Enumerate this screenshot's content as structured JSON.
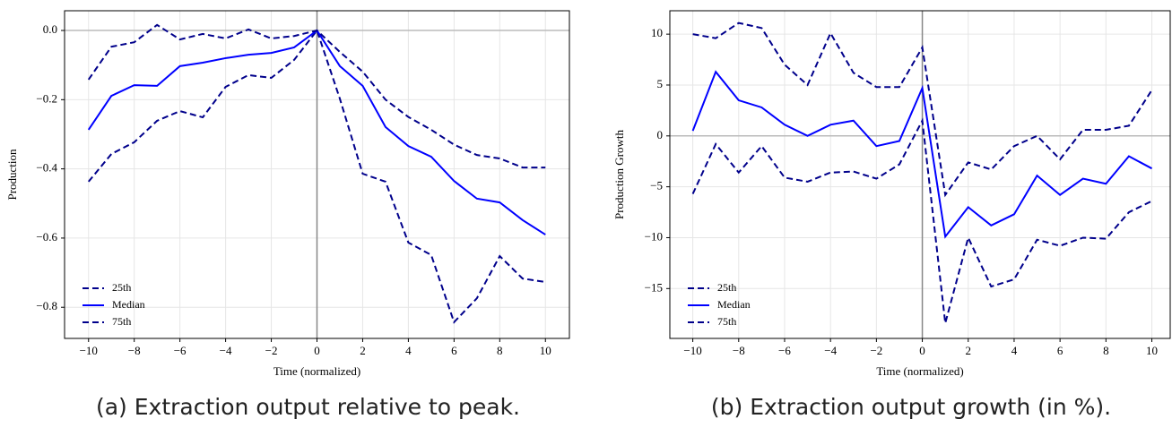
{
  "chart_data": [
    {
      "type": "line",
      "xlabel": "Time (normalized)",
      "ylabel": "Production",
      "caption": "(a) Extraction output relative to peak.",
      "x": [
        -10,
        -9,
        -8,
        -7,
        -6,
        -5,
        -4,
        -3,
        -2,
        -1,
        0,
        1,
        2,
        3,
        4,
        5,
        6,
        7,
        8,
        9,
        10
      ],
      "series": [
        {
          "name": "25th",
          "color": "#00008b",
          "style": "dashed",
          "values": [
            -0.437,
            -0.357,
            -0.323,
            -0.261,
            -0.233,
            -0.251,
            -0.163,
            -0.129,
            -0.137,
            -0.085,
            0,
            -0.197,
            -0.414,
            -0.437,
            -0.613,
            -0.649,
            -0.843,
            -0.774,
            -0.652,
            -0.717,
            -0.727
          ]
        },
        {
          "name": "Median",
          "color": "#0000ff",
          "style": "solid",
          "values": [
            -0.287,
            -0.189,
            -0.158,
            -0.16,
            -0.103,
            -0.093,
            -0.08,
            -0.07,
            -0.065,
            -0.049,
            0,
            -0.103,
            -0.16,
            -0.279,
            -0.334,
            -0.365,
            -0.435,
            -0.486,
            -0.497,
            -0.548,
            -0.59
          ]
        },
        {
          "name": "75th",
          "color": "#00008b",
          "style": "dashed",
          "values": [
            -0.142,
            -0.047,
            -0.034,
            0.016,
            -0.026,
            -0.01,
            -0.023,
            0.003,
            -0.023,
            -0.016,
            0,
            -0.062,
            -0.119,
            -0.2,
            -0.25,
            -0.287,
            -0.33,
            -0.36,
            -0.37,
            -0.396,
            -0.396
          ]
        }
      ],
      "xlim": [
        -11.05,
        11.05
      ],
      "ylim": [
        -0.89,
        0.057
      ],
      "xticks": [
        {
          "value": -10,
          "label": "−10"
        },
        {
          "value": -8,
          "label": "−8"
        },
        {
          "value": -6,
          "label": "−6"
        },
        {
          "value": -4,
          "label": "−4"
        },
        {
          "value": -2,
          "label": "−2"
        },
        0,
        2,
        4,
        6,
        8,
        10
      ],
      "yticks": [
        {
          "value": -0.8,
          "label": "−0.8"
        },
        {
          "value": -0.6,
          "label": "−0.6"
        },
        {
          "value": -0.4,
          "label": "−0.4"
        },
        {
          "value": -0.2,
          "label": "−0.2"
        },
        {
          "value": 0,
          "label": "0.0"
        }
      ],
      "grid": true,
      "legend": "lower left"
    },
    {
      "type": "line",
      "xlabel": "Time (normalized)",
      "ylabel": "Production Growth",
      "caption": "(b) Extraction output growth (in %).",
      "x": [
        -10,
        -9,
        -8,
        -7,
        -6,
        -5,
        -4,
        -3,
        -2,
        -1,
        0,
        1,
        2,
        3,
        4,
        5,
        6,
        7,
        8,
        9,
        10
      ],
      "series": [
        {
          "name": "25th",
          "color": "#00008b",
          "style": "dashed",
          "values": [
            -5.7,
            -0.8,
            -3.6,
            -1,
            -4.1,
            -4.5,
            -3.6,
            -3.5,
            -4.2,
            -2.8,
            1.5,
            -18.4,
            -10,
            -14.8,
            -14.1,
            -10.2,
            -10.8,
            -10,
            -10.1,
            -7.5,
            -6.4
          ]
        },
        {
          "name": "Median",
          "color": "#0000ff",
          "style": "solid",
          "values": [
            0.5,
            6.3,
            3.5,
            2.8,
            1.1,
            0,
            1.1,
            1.5,
            -1,
            -0.5,
            4.7,
            -9.9,
            -7,
            -8.8,
            -7.7,
            -3.9,
            -5.8,
            -4.2,
            -4.7,
            -2,
            -3.2
          ]
        },
        {
          "name": "75th",
          "color": "#00008b",
          "style": "dashed",
          "values": [
            10,
            9.6,
            11.1,
            10.6,
            7,
            5,
            10.1,
            6.2,
            4.8,
            4.8,
            8.7,
            -5.8,
            -2.6,
            -3.3,
            -1,
            0,
            -2.3,
            0.6,
            0.6,
            1,
            4.5
          ]
        }
      ],
      "xlim": [
        -11.0,
        10.8
      ],
      "ylim": [
        -19.9,
        12.3
      ],
      "xticks": [
        {
          "value": -10,
          "label": "−10"
        },
        {
          "value": -8,
          "label": "−8"
        },
        {
          "value": -6,
          "label": "−6"
        },
        {
          "value": -4,
          "label": "−4"
        },
        {
          "value": -2,
          "label": "−2"
        },
        0,
        2,
        4,
        6,
        8,
        10
      ],
      "yticks": [
        {
          "value": -15,
          "label": "−15"
        },
        {
          "value": -10,
          "label": "−10"
        },
        {
          "value": -5,
          "label": "−5"
        },
        0,
        5,
        10
      ],
      "grid": true,
      "legend": "lower left"
    }
  ]
}
